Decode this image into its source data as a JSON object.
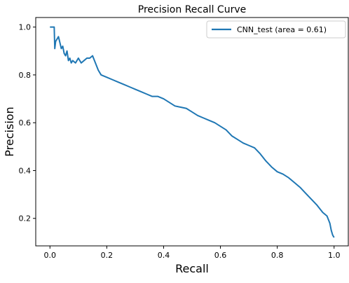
{
  "chart_data": {
    "type": "line",
    "title": "Precision Recall Curve",
    "xlabel": "Recall",
    "ylabel": "Precision",
    "xlim": [
      -0.05,
      1.05
    ],
    "ylim": [
      0.085,
      1.04
    ],
    "xticks": [
      0.0,
      0.2,
      0.4,
      0.6,
      0.8,
      1.0
    ],
    "xtick_labels": [
      "0.0",
      "0.2",
      "0.4",
      "0.6",
      "0.8",
      "1.0"
    ],
    "yticks": [
      0.2,
      0.4,
      0.6,
      0.8,
      1.0
    ],
    "ytick_labels": [
      "0.2",
      "0.4",
      "0.6",
      "0.8",
      "1.0"
    ],
    "grid": false,
    "legend_position": "top-right",
    "series": [
      {
        "name": "CNN_test (area = 0.61)",
        "color": "#1f77b4",
        "x": [
          0.0,
          0.015,
          0.017,
          0.02,
          0.03,
          0.04,
          0.045,
          0.05,
          0.055,
          0.06,
          0.065,
          0.07,
          0.075,
          0.08,
          0.09,
          0.1,
          0.11,
          0.12,
          0.13,
          0.14,
          0.15,
          0.16,
          0.17,
          0.18,
          0.2,
          0.22,
          0.24,
          0.26,
          0.28,
          0.3,
          0.32,
          0.34,
          0.36,
          0.38,
          0.4,
          0.42,
          0.44,
          0.46,
          0.48,
          0.5,
          0.52,
          0.54,
          0.56,
          0.58,
          0.6,
          0.62,
          0.64,
          0.66,
          0.68,
          0.7,
          0.72,
          0.74,
          0.76,
          0.78,
          0.8,
          0.82,
          0.84,
          0.86,
          0.88,
          0.9,
          0.92,
          0.94,
          0.96,
          0.975,
          0.985,
          0.99,
          0.995,
          1.0
        ],
        "y": [
          1.0,
          1.0,
          0.91,
          0.94,
          0.96,
          0.91,
          0.92,
          0.89,
          0.88,
          0.9,
          0.86,
          0.87,
          0.85,
          0.86,
          0.85,
          0.87,
          0.85,
          0.86,
          0.87,
          0.87,
          0.88,
          0.85,
          0.82,
          0.8,
          0.79,
          0.78,
          0.77,
          0.76,
          0.75,
          0.74,
          0.73,
          0.72,
          0.71,
          0.71,
          0.7,
          0.685,
          0.67,
          0.665,
          0.66,
          0.645,
          0.63,
          0.62,
          0.61,
          0.6,
          0.585,
          0.57,
          0.545,
          0.53,
          0.515,
          0.505,
          0.495,
          0.47,
          0.44,
          0.415,
          0.395,
          0.385,
          0.37,
          0.35,
          0.33,
          0.305,
          0.28,
          0.255,
          0.225,
          0.21,
          0.18,
          0.15,
          0.13,
          0.12
        ]
      }
    ]
  }
}
